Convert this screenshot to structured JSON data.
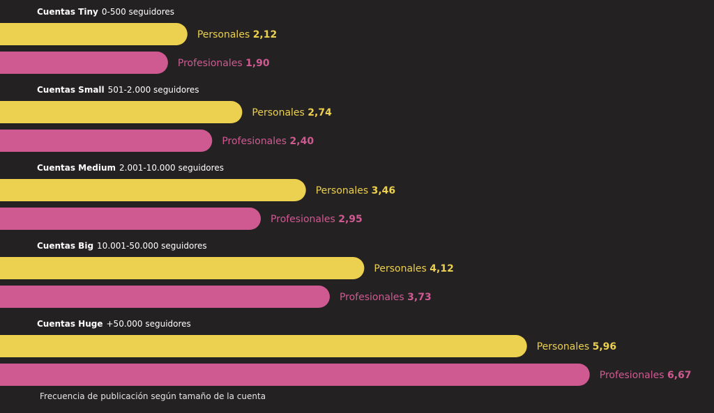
{
  "chart_data": {
    "type": "bar",
    "orientation": "horizontal",
    "series_colors": {
      "Personales": "#ecd04f",
      "Profesionales": "#cf5a92"
    },
    "background": "#232122",
    "groups": [
      {
        "name_bold": "Cuentas Tiny",
        "range": "0-500 seguidores",
        "personales": {
          "label": "Personales",
          "value_text": "2,12",
          "value": 2.12
        },
        "profesionales": {
          "label": "Profesionales",
          "value_text": "1,90",
          "value": 1.9
        }
      },
      {
        "name_bold": "Cuentas Small",
        "range": "501-2.000 seguidores",
        "personales": {
          "label": "Personales",
          "value_text": "2,74",
          "value": 2.74
        },
        "profesionales": {
          "label": "Profesionales",
          "value_text": "2,40",
          "value": 2.4
        }
      },
      {
        "name_bold": "Cuentas Medium",
        "range": "2.001-10.000 seguidores",
        "personales": {
          "label": "Personales",
          "value_text": "3,46",
          "value": 3.46
        },
        "profesionales": {
          "label": "Profesionales",
          "value_text": "2,95",
          "value": 2.95
        }
      },
      {
        "name_bold": "Cuentas Big",
        "range": "10.001-50.000 seguidores",
        "personales": {
          "label": "Personales",
          "value_text": "4,12",
          "value": 4.12
        },
        "profesionales": {
          "label": "Profesionales",
          "value_text": "3,73",
          "value": 3.73
        }
      },
      {
        "name_bold": "Cuentas Huge",
        "range": "+50.000 seguidores",
        "personales": {
          "label": "Personales",
          "value_text": "5,96",
          "value": 5.96
        },
        "profesionales": {
          "label": "Profesionales",
          "value_text": "6,67",
          "value": 6.67
        }
      }
    ],
    "caption": "Frecuencia de publicación según tamaño de la cuenta",
    "grid": false,
    "legend": "none"
  }
}
